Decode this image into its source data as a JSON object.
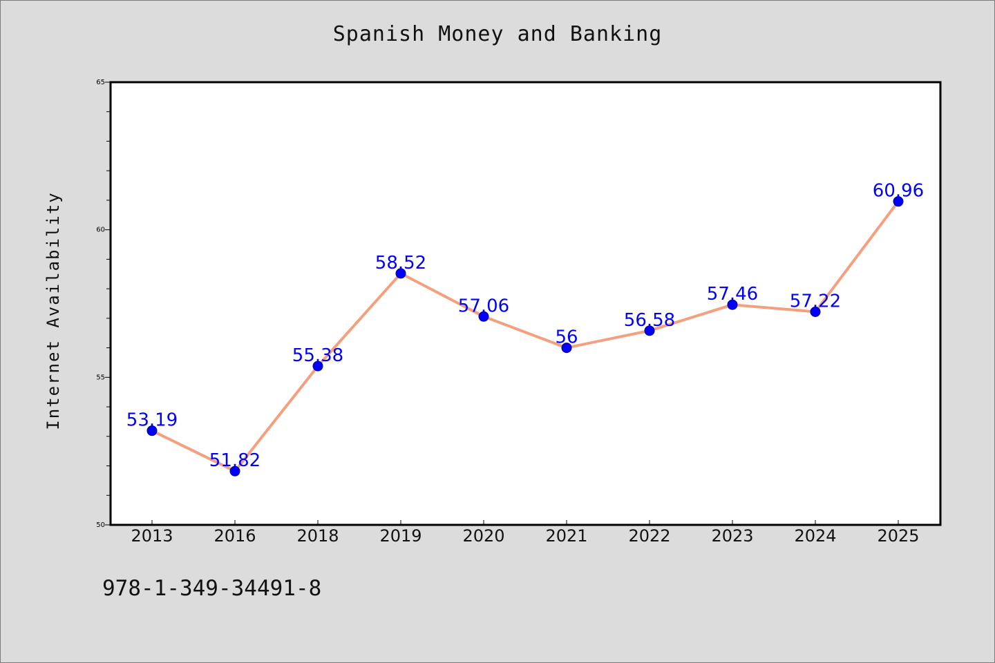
{
  "chart_data": {
    "type": "line",
    "title": "Spanish Money and Banking",
    "xlabel": "",
    "ylabel": "Internet Availability",
    "categories": [
      "2013",
      "2016",
      "2018",
      "2019",
      "2020",
      "2021",
      "2022",
      "2023",
      "2024",
      "2025"
    ],
    "values": [
      53.19,
      51.82,
      55.38,
      58.52,
      57.06,
      56,
      56.58,
      57.46,
      57.22,
      60.96
    ],
    "value_labels": [
      "53.19",
      "51.82",
      "55.38",
      "58.52",
      "57.06",
      "56",
      "56.58",
      "57.46",
      "57.22",
      "60.96"
    ],
    "ylim": [
      50,
      65
    ],
    "yticks": [
      "50",
      "55",
      "60",
      "65"
    ],
    "grid": false,
    "legend": "none",
    "line_color": "#f4a07e",
    "marker_color": "#0000ff",
    "label_color": "#0000ff"
  },
  "footer": {
    "isbn": "978-1-349-34491-8"
  }
}
